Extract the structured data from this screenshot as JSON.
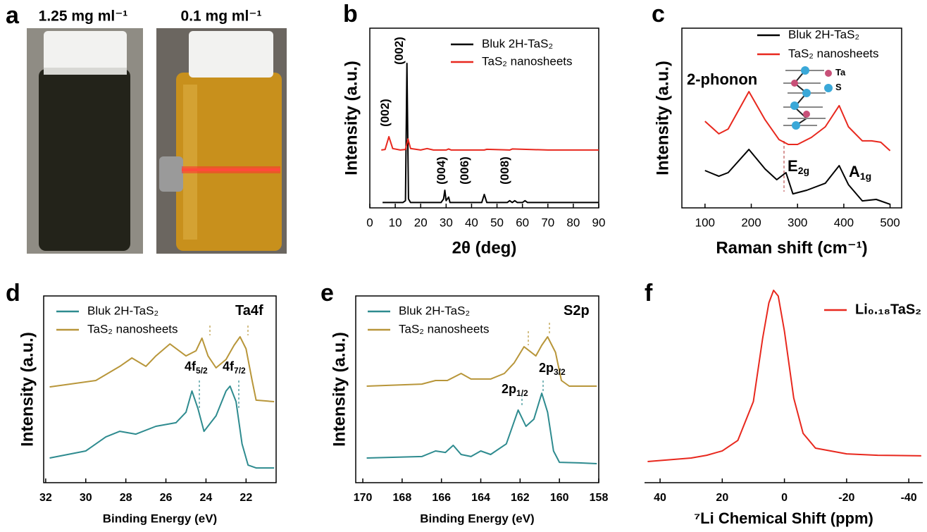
{
  "photo": {
    "label": "a",
    "captions": [
      "1.25 mg ml⁻¹",
      "0.1 mg ml⁻¹"
    ]
  },
  "chart_data": [
    {
      "type": "line",
      "label": "b",
      "xlabel": "2θ (deg)",
      "ylabel": "Intensity (a.u.)",
      "xlim": [
        0,
        90
      ],
      "xticks": [
        0,
        10,
        20,
        30,
        40,
        50,
        60,
        70,
        80,
        90
      ],
      "ylim": [
        0,
        100
      ],
      "frame": true,
      "series": [
        {
          "name": "Bluk 2H-TaS₂",
          "color": "#000000",
          "x": [
            5,
            10,
            13,
            14,
            14.6,
            15.2,
            16,
            20,
            28,
            29,
            29.5,
            30,
            31,
            31.5,
            33,
            44,
            45,
            46,
            54,
            55,
            56,
            57,
            58,
            60,
            61,
            62,
            70,
            80,
            90
          ],
          "values": [
            3,
            3,
            3,
            4,
            80.4,
            5,
            3,
            3,
            3,
            5,
            9.8,
            4,
            6,
            3,
            3,
            3,
            7.5,
            3,
            3,
            4,
            3,
            4,
            3,
            3,
            4,
            3,
            3,
            3,
            3
          ]
        },
        {
          "name": "TaS₂ nanosheets",
          "color": "#e8281e",
          "x": [
            4.5,
            6,
            7.5,
            9,
            12,
            14,
            15,
            16,
            20,
            22.5,
            25,
            30,
            31,
            32,
            45,
            46,
            55,
            56,
            70,
            90
          ],
          "values": [
            32.2,
            32.5,
            39.6,
            33,
            32.2,
            32.5,
            38.4,
            33,
            32.2,
            33,
            32.2,
            32.2,
            32.8,
            32.2,
            32.2,
            32.6,
            32.2,
            32.8,
            32.2,
            32.2
          ]
        }
      ],
      "annotations": [
        {
          "text": "(002)",
          "color": "#e8281e"
        },
        {
          "text": "(002)"
        },
        {
          "text": "(004)"
        },
        {
          "text": "(006)"
        },
        {
          "text": "(008)"
        }
      ]
    },
    {
      "type": "line",
      "label": "c",
      "xlabel": "Raman shift (cm⁻¹)",
      "ylabel": "Intensity (a.u.)",
      "xlim": [
        50,
        525
      ],
      "xticks": [
        100,
        200,
        300,
        400,
        500
      ],
      "ylim": [
        0,
        100
      ],
      "frame": true,
      "series": [
        {
          "name": "Bluk 2H-TaS₂",
          "color": "#000000",
          "x": [
            100,
            130,
            150,
            195,
            230,
            255,
            275,
            290,
            320,
            360,
            390,
            410,
            440,
            470,
            500
          ],
          "values": [
            20.8,
            17.6,
            19.6,
            32.5,
            21.6,
            15.7,
            19.6,
            7.8,
            9.8,
            13.7,
            23.5,
            12.9,
            3.9,
            4.7,
            2.0
          ]
        },
        {
          "name": "TaS₂ nanosheets",
          "color": "#e8281e",
          "x": [
            100,
            130,
            150,
            195,
            230,
            260,
            280,
            300,
            330,
            360,
            390,
            410,
            440,
            460,
            480,
            500
          ],
          "values": [
            48.2,
            41.2,
            43.9,
            64.7,
            49.0,
            38.0,
            35.3,
            35.3,
            39.2,
            45.1,
            56.9,
            45.1,
            37.3,
            37.3,
            36.5,
            31.8
          ]
        }
      ],
      "annotations": [
        {
          "text": "2-phonon"
        },
        {
          "text": "E",
          "sub": "2g"
        },
        {
          "text": "A",
          "sub": "1g"
        },
        {
          "text": "Ta"
        },
        {
          "text": "S"
        }
      ]
    },
    {
      "type": "line",
      "label": "d",
      "xlabel": "Binding Energy (eV)",
      "ylabel": "Intensity (a.u.)",
      "xlim": [
        32.1,
        20.5
      ],
      "xticks": [
        32,
        30,
        28,
        26,
        24,
        22
      ],
      "ylim": [
        0,
        100
      ],
      "frame": true,
      "series": [
        {
          "name": "Bluk 2H-TaS₂",
          "color": "#2e8b8f",
          "x": [
            31.8,
            30,
            29,
            28.3,
            27.5,
            26.5,
            25.5,
            25,
            24.7,
            24.4,
            24.1,
            23.5,
            23,
            22.8,
            22.5,
            22.2,
            21.9,
            21.5,
            20.6
          ],
          "values": [
            13.2,
            17.0,
            24.5,
            27.5,
            26.0,
            30.2,
            32.1,
            37.7,
            49.1,
            39.6,
            27.5,
            35.8,
            49.1,
            51.7,
            43.4,
            20.8,
            9.4,
            7.9,
            7.9
          ]
        },
        {
          "name": "TaS₂ nanosheets",
          "color": "#b8963a",
          "x": [
            31.8,
            29.5,
            28.3,
            27.7,
            27,
            26.5,
            25.8,
            25,
            24.5,
            24.2,
            23.9,
            23.5,
            23,
            22.6,
            22.3,
            22,
            21.7,
            21.5,
            20.6
          ],
          "values": [
            51.3,
            54.7,
            62.3,
            66.8,
            62.3,
            67.9,
            74.3,
            67.9,
            70.6,
            77.4,
            67.9,
            61.5,
            66.0,
            73.6,
            78.1,
            71.7,
            54.7,
            44.2,
            43.4
          ]
        }
      ],
      "annotations": [
        {
          "text": "Ta4f"
        },
        {
          "text": "4f",
          "sub": "5/2"
        },
        {
          "text": "4f",
          "sub": "7/2"
        }
      ]
    },
    {
      "type": "line",
      "label": "e",
      "xlabel": "Binding Energy (eV)",
      "ylabel": "Intensity (a.u.)",
      "xlim": [
        170.36,
        158
      ],
      "xticks": [
        170,
        168,
        166,
        164,
        162,
        160,
        158
      ],
      "ylim": [
        0,
        100
      ],
      "frame": true,
      "series": [
        {
          "name": "Bluk 2H-TaS₂",
          "color": "#2e8b8f",
          "x": [
            169.8,
            167,
            166.3,
            165.8,
            165.4,
            165,
            164.5,
            164,
            163.5,
            162.7,
            162.1,
            161.7,
            161.3,
            160.9,
            160.6,
            160.3,
            160,
            159,
            158.1
          ],
          "values": [
            13.2,
            14.0,
            17.0,
            16.2,
            20.0,
            15.1,
            14.0,
            17.0,
            15.1,
            20.8,
            38.9,
            30.2,
            34.0,
            47.9,
            37.7,
            17.0,
            10.9,
            10.6,
            10.2
          ]
        },
        {
          "name": "TaS₂ nanosheets",
          "color": "#b8963a",
          "x": [
            169.8,
            167,
            166.3,
            165.7,
            165,
            164.5,
            163.5,
            162.8,
            162.3,
            161.8,
            161.2,
            160.9,
            160.6,
            160.2,
            159.9,
            159.5,
            158.1
          ],
          "values": [
            51.7,
            52.8,
            54.7,
            54.7,
            58.5,
            55.5,
            55.5,
            58.5,
            64.2,
            72.8,
            67.9,
            73.6,
            78.1,
            69.8,
            54.7,
            51.7,
            51.7
          ]
        }
      ],
      "annotations": [
        {
          "text": "S2p"
        },
        {
          "text": "2p",
          "sub": "1/2"
        },
        {
          "text": "2p",
          "sub": "3/2"
        }
      ]
    },
    {
      "type": "line",
      "label": "f",
      "xlabel": "⁷Li Chemical Shift (ppm)",
      "xlim": [
        45,
        -44.5
      ],
      "xticks": [
        40,
        20,
        0,
        -20,
        -40
      ],
      "ylim": [
        0,
        100
      ],
      "frame": false,
      "series": [
        {
          "name": "Li₀.₁₈TaS₂",
          "color": "#e8281e",
          "x": [
            44,
            30,
            25,
            20,
            15,
            10,
            7,
            5,
            3.5,
            2,
            0,
            -3,
            -6,
            -10,
            -20,
            -30,
            -44
          ],
          "values": [
            10.7,
            12.5,
            13.9,
            16.1,
            21.4,
            41.1,
            73.2,
            91.1,
            97.5,
            94.6,
            76.8,
            42.9,
            25.0,
            17.5,
            14.6,
            13.9,
            13.6
          ]
        }
      ],
      "annotations": []
    }
  ]
}
